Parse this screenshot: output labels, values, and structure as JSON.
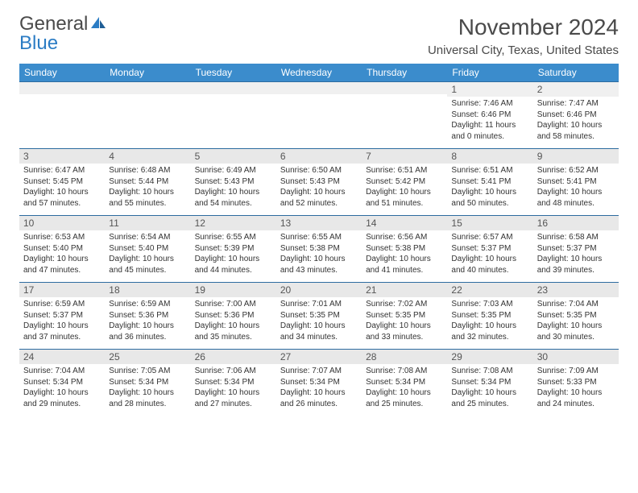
{
  "logo": {
    "part1": "General",
    "part2": "Blue"
  },
  "title": "November 2024",
  "location": "Universal City, Texas, United States",
  "colors": {
    "header_bg": "#3b8ccc",
    "header_text": "#ffffff",
    "daynum_bg": "#e8e8e8",
    "row_divider": "#2d6ca0",
    "body_text": "#333333",
    "title_text": "#4a4a4a",
    "logo_blue": "#2b7cc4"
  },
  "weekdays": [
    "Sunday",
    "Monday",
    "Tuesday",
    "Wednesday",
    "Thursday",
    "Friday",
    "Saturday"
  ],
  "weeks": [
    [
      null,
      null,
      null,
      null,
      null,
      {
        "day": "1",
        "sunrise": "Sunrise: 7:46 AM",
        "sunset": "Sunset: 6:46 PM",
        "dl1": "Daylight: 11 hours",
        "dl2": "and 0 minutes."
      },
      {
        "day": "2",
        "sunrise": "Sunrise: 7:47 AM",
        "sunset": "Sunset: 6:46 PM",
        "dl1": "Daylight: 10 hours",
        "dl2": "and 58 minutes."
      }
    ],
    [
      {
        "day": "3",
        "sunrise": "Sunrise: 6:47 AM",
        "sunset": "Sunset: 5:45 PM",
        "dl1": "Daylight: 10 hours",
        "dl2": "and 57 minutes."
      },
      {
        "day": "4",
        "sunrise": "Sunrise: 6:48 AM",
        "sunset": "Sunset: 5:44 PM",
        "dl1": "Daylight: 10 hours",
        "dl2": "and 55 minutes."
      },
      {
        "day": "5",
        "sunrise": "Sunrise: 6:49 AM",
        "sunset": "Sunset: 5:43 PM",
        "dl1": "Daylight: 10 hours",
        "dl2": "and 54 minutes."
      },
      {
        "day": "6",
        "sunrise": "Sunrise: 6:50 AM",
        "sunset": "Sunset: 5:43 PM",
        "dl1": "Daylight: 10 hours",
        "dl2": "and 52 minutes."
      },
      {
        "day": "7",
        "sunrise": "Sunrise: 6:51 AM",
        "sunset": "Sunset: 5:42 PM",
        "dl1": "Daylight: 10 hours",
        "dl2": "and 51 minutes."
      },
      {
        "day": "8",
        "sunrise": "Sunrise: 6:51 AM",
        "sunset": "Sunset: 5:41 PM",
        "dl1": "Daylight: 10 hours",
        "dl2": "and 50 minutes."
      },
      {
        "day": "9",
        "sunrise": "Sunrise: 6:52 AM",
        "sunset": "Sunset: 5:41 PM",
        "dl1": "Daylight: 10 hours",
        "dl2": "and 48 minutes."
      }
    ],
    [
      {
        "day": "10",
        "sunrise": "Sunrise: 6:53 AM",
        "sunset": "Sunset: 5:40 PM",
        "dl1": "Daylight: 10 hours",
        "dl2": "and 47 minutes."
      },
      {
        "day": "11",
        "sunrise": "Sunrise: 6:54 AM",
        "sunset": "Sunset: 5:40 PM",
        "dl1": "Daylight: 10 hours",
        "dl2": "and 45 minutes."
      },
      {
        "day": "12",
        "sunrise": "Sunrise: 6:55 AM",
        "sunset": "Sunset: 5:39 PM",
        "dl1": "Daylight: 10 hours",
        "dl2": "and 44 minutes."
      },
      {
        "day": "13",
        "sunrise": "Sunrise: 6:55 AM",
        "sunset": "Sunset: 5:38 PM",
        "dl1": "Daylight: 10 hours",
        "dl2": "and 43 minutes."
      },
      {
        "day": "14",
        "sunrise": "Sunrise: 6:56 AM",
        "sunset": "Sunset: 5:38 PM",
        "dl1": "Daylight: 10 hours",
        "dl2": "and 41 minutes."
      },
      {
        "day": "15",
        "sunrise": "Sunrise: 6:57 AM",
        "sunset": "Sunset: 5:37 PM",
        "dl1": "Daylight: 10 hours",
        "dl2": "and 40 minutes."
      },
      {
        "day": "16",
        "sunrise": "Sunrise: 6:58 AM",
        "sunset": "Sunset: 5:37 PM",
        "dl1": "Daylight: 10 hours",
        "dl2": "and 39 minutes."
      }
    ],
    [
      {
        "day": "17",
        "sunrise": "Sunrise: 6:59 AM",
        "sunset": "Sunset: 5:37 PM",
        "dl1": "Daylight: 10 hours",
        "dl2": "and 37 minutes."
      },
      {
        "day": "18",
        "sunrise": "Sunrise: 6:59 AM",
        "sunset": "Sunset: 5:36 PM",
        "dl1": "Daylight: 10 hours",
        "dl2": "and 36 minutes."
      },
      {
        "day": "19",
        "sunrise": "Sunrise: 7:00 AM",
        "sunset": "Sunset: 5:36 PM",
        "dl1": "Daylight: 10 hours",
        "dl2": "and 35 minutes."
      },
      {
        "day": "20",
        "sunrise": "Sunrise: 7:01 AM",
        "sunset": "Sunset: 5:35 PM",
        "dl1": "Daylight: 10 hours",
        "dl2": "and 34 minutes."
      },
      {
        "day": "21",
        "sunrise": "Sunrise: 7:02 AM",
        "sunset": "Sunset: 5:35 PM",
        "dl1": "Daylight: 10 hours",
        "dl2": "and 33 minutes."
      },
      {
        "day": "22",
        "sunrise": "Sunrise: 7:03 AM",
        "sunset": "Sunset: 5:35 PM",
        "dl1": "Daylight: 10 hours",
        "dl2": "and 32 minutes."
      },
      {
        "day": "23",
        "sunrise": "Sunrise: 7:04 AM",
        "sunset": "Sunset: 5:35 PM",
        "dl1": "Daylight: 10 hours",
        "dl2": "and 30 minutes."
      }
    ],
    [
      {
        "day": "24",
        "sunrise": "Sunrise: 7:04 AM",
        "sunset": "Sunset: 5:34 PM",
        "dl1": "Daylight: 10 hours",
        "dl2": "and 29 minutes."
      },
      {
        "day": "25",
        "sunrise": "Sunrise: 7:05 AM",
        "sunset": "Sunset: 5:34 PM",
        "dl1": "Daylight: 10 hours",
        "dl2": "and 28 minutes."
      },
      {
        "day": "26",
        "sunrise": "Sunrise: 7:06 AM",
        "sunset": "Sunset: 5:34 PM",
        "dl1": "Daylight: 10 hours",
        "dl2": "and 27 minutes."
      },
      {
        "day": "27",
        "sunrise": "Sunrise: 7:07 AM",
        "sunset": "Sunset: 5:34 PM",
        "dl1": "Daylight: 10 hours",
        "dl2": "and 26 minutes."
      },
      {
        "day": "28",
        "sunrise": "Sunrise: 7:08 AM",
        "sunset": "Sunset: 5:34 PM",
        "dl1": "Daylight: 10 hours",
        "dl2": "and 25 minutes."
      },
      {
        "day": "29",
        "sunrise": "Sunrise: 7:08 AM",
        "sunset": "Sunset: 5:34 PM",
        "dl1": "Daylight: 10 hours",
        "dl2": "and 25 minutes."
      },
      {
        "day": "30",
        "sunrise": "Sunrise: 7:09 AM",
        "sunset": "Sunset: 5:33 PM",
        "dl1": "Daylight: 10 hours",
        "dl2": "and 24 minutes."
      }
    ]
  ]
}
